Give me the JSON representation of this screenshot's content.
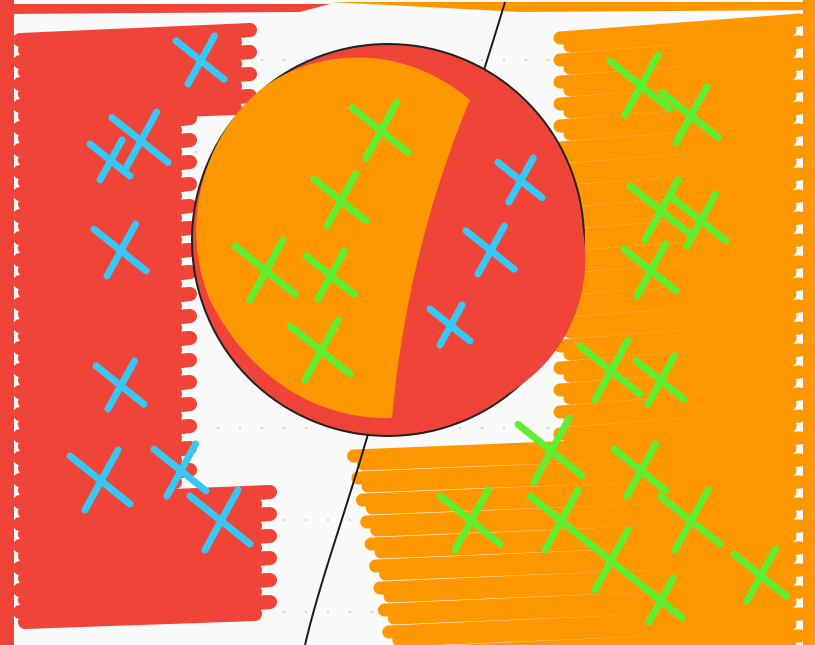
{
  "canvas": {
    "background": "#fafafa",
    "grid_dots": true,
    "grid_dot_color": "#d8d8d8"
  },
  "colors": {
    "red": "#f04438",
    "orange": "#ff9800",
    "green": "#5ef030",
    "blue": "#38c8f8",
    "divider": "#1a1a1a",
    "frame_red": "#f04438",
    "frame_orange": "#ff9800"
  },
  "regions": [
    {
      "name": "left-region",
      "fill": "red",
      "marks": "blue"
    },
    {
      "name": "circle-left-half",
      "fill": "orange",
      "marks": "green"
    },
    {
      "name": "circle-right-half",
      "fill": "red",
      "marks": "blue"
    },
    {
      "name": "right-region",
      "fill": "orange",
      "marks": "green"
    }
  ],
  "icons": [
    "hand-drawn-circle",
    "divider-line",
    "cross-mark"
  ]
}
